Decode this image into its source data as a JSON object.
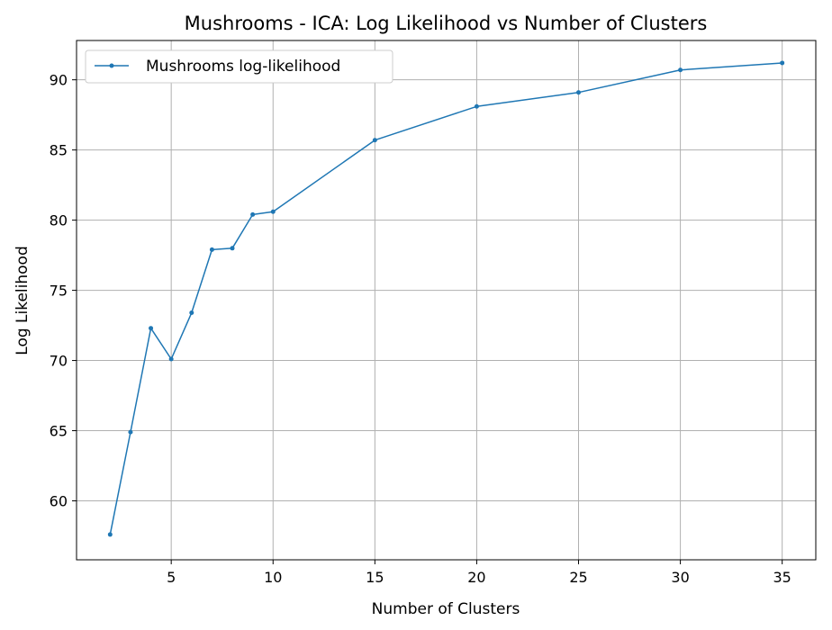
{
  "chart_data": {
    "type": "line",
    "title": "Mushrooms - ICA: Log Likelihood vs Number of Clusters",
    "xlabel": "Number of Clusters",
    "ylabel": "Log Likelihood",
    "xlim": [
      0.35,
      36.65
    ],
    "ylim": [
      55.8,
      92.8
    ],
    "xticks": [
      5,
      10,
      15,
      20,
      25,
      30,
      35
    ],
    "yticks": [
      60,
      65,
      70,
      75,
      80,
      85,
      90
    ],
    "grid": true,
    "legend_position": "top-left",
    "x": [
      2,
      3,
      4,
      5,
      6,
      7,
      8,
      9,
      10,
      15,
      20,
      25,
      30,
      35
    ],
    "series": [
      {
        "name": "Mushrooms log-likelihood",
        "color": "#1f77b4",
        "marker": "circle",
        "values": [
          57.6,
          64.9,
          72.3,
          70.1,
          73.4,
          77.9,
          78.0,
          80.4,
          80.6,
          85.7,
          88.1,
          89.1,
          90.7,
          91.2
        ]
      }
    ]
  }
}
